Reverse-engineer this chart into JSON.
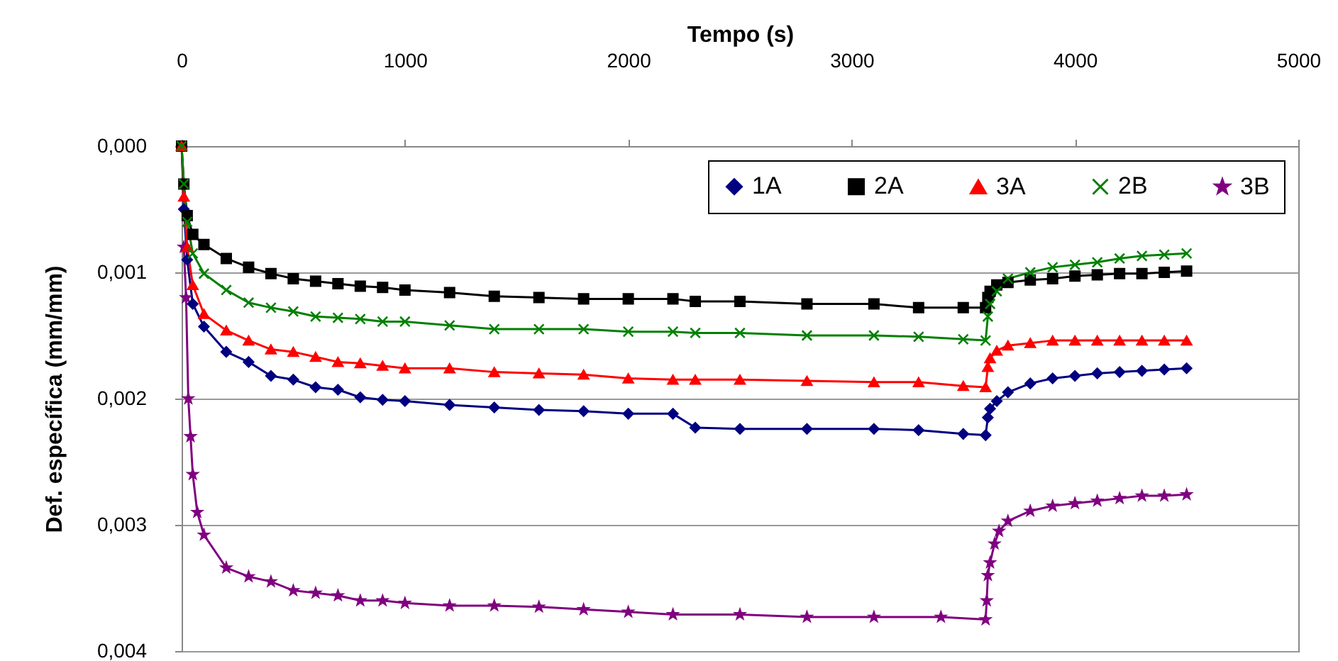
{
  "chart_data": {
    "type": "line",
    "xlabel": "Tempo (s)",
    "ylabel": "Def. específica (mm/mm)",
    "xlim": [
      0,
      5000
    ],
    "xticks": [
      0,
      1000,
      2000,
      3000,
      4000,
      5000
    ],
    "ylim": [
      0.004,
      0
    ],
    "yticks": [
      {
        "value": 0,
        "label": "0,000"
      },
      {
        "value": 0.001,
        "label": "0,001"
      },
      {
        "value": 0.002,
        "label": "0,002"
      },
      {
        "value": 0.003,
        "label": "0,003"
      },
      {
        "value": 0.004,
        "label": "0,004"
      }
    ],
    "grid": "y",
    "legend": "top right",
    "line_style": "solid",
    "series": [
      {
        "name": "1A",
        "color": "#000080",
        "marker": "diamond",
        "x": [
          0,
          10,
          25,
          50,
          100,
          200,
          300,
          400,
          500,
          600,
          700,
          800,
          900,
          1000,
          1200,
          1400,
          1600,
          1800,
          2000,
          2200,
          2300,
          2500,
          2800,
          3100,
          3300,
          3500,
          3600,
          3610,
          3620,
          3650,
          3700,
          3800,
          3900,
          4000,
          4100,
          4200,
          4300,
          4400,
          4500
        ],
        "values": [
          0,
          0.0005,
          0.0009,
          0.00125,
          0.00143,
          0.00163,
          0.00171,
          0.00182,
          0.00185,
          0.00191,
          0.00193,
          0.00199,
          0.00201,
          0.00202,
          0.00205,
          0.00207,
          0.00209,
          0.0021,
          0.00212,
          0.00212,
          0.00223,
          0.00224,
          0.00224,
          0.00224,
          0.00225,
          0.00228,
          0.00229,
          0.00215,
          0.00208,
          0.00202,
          0.00195,
          0.00188,
          0.00184,
          0.00182,
          0.0018,
          0.00179,
          0.00178,
          0.00177,
          0.00176
        ]
      },
      {
        "name": "2A",
        "color": "#000000",
        "marker": "square",
        "x": [
          0,
          10,
          25,
          50,
          100,
          200,
          300,
          400,
          500,
          600,
          700,
          800,
          900,
          1000,
          1200,
          1400,
          1600,
          1800,
          2000,
          2200,
          2300,
          2500,
          2800,
          3100,
          3300,
          3500,
          3600,
          3610,
          3620,
          3650,
          3700,
          3800,
          3900,
          4000,
          4100,
          4200,
          4300,
          4400,
          4500
        ],
        "values": [
          0,
          0.0003,
          0.00055,
          0.0007,
          0.00078,
          0.00089,
          0.00096,
          0.00101,
          0.00105,
          0.00107,
          0.00109,
          0.00111,
          0.00112,
          0.00114,
          0.00116,
          0.00119,
          0.0012,
          0.00121,
          0.00121,
          0.00121,
          0.00123,
          0.00123,
          0.00125,
          0.00125,
          0.00128,
          0.00128,
          0.00128,
          0.0012,
          0.00115,
          0.0011,
          0.00108,
          0.00106,
          0.00105,
          0.00103,
          0.00102,
          0.00101,
          0.00101,
          0.001,
          0.00099
        ]
      },
      {
        "name": "3A",
        "color": "#ff0000",
        "marker": "triangle",
        "x": [
          0,
          10,
          25,
          50,
          100,
          200,
          300,
          400,
          500,
          600,
          700,
          800,
          900,
          1000,
          1200,
          1400,
          1600,
          1800,
          2000,
          2200,
          2300,
          2500,
          2800,
          3100,
          3300,
          3500,
          3600,
          3610,
          3620,
          3650,
          3700,
          3800,
          3900,
          4000,
          4100,
          4200,
          4300,
          4400,
          4500
        ],
        "values": [
          0,
          0.0004,
          0.0008,
          0.0011,
          0.00133,
          0.00146,
          0.00154,
          0.00161,
          0.00163,
          0.00167,
          0.00171,
          0.00172,
          0.00174,
          0.00176,
          0.00176,
          0.00179,
          0.0018,
          0.00181,
          0.00184,
          0.00185,
          0.00185,
          0.00185,
          0.00186,
          0.00187,
          0.00187,
          0.0019,
          0.00191,
          0.00175,
          0.00168,
          0.00162,
          0.00158,
          0.00156,
          0.00154,
          0.00154,
          0.00154,
          0.00154,
          0.00154,
          0.00154,
          0.00154
        ]
      },
      {
        "name": "2B",
        "color": "#008000",
        "marker": "cross",
        "x": [
          0,
          10,
          25,
          50,
          100,
          200,
          300,
          400,
          500,
          600,
          700,
          800,
          900,
          1000,
          1200,
          1400,
          1600,
          1800,
          2000,
          2200,
          2300,
          2500,
          2800,
          3100,
          3300,
          3500,
          3600,
          3610,
          3620,
          3650,
          3700,
          3800,
          3900,
          4000,
          4100,
          4200,
          4300,
          4400,
          4500
        ],
        "values": [
          0,
          0.0003,
          0.0006,
          0.00085,
          0.00101,
          0.00114,
          0.00124,
          0.00128,
          0.00131,
          0.00135,
          0.00136,
          0.00137,
          0.00139,
          0.00139,
          0.00142,
          0.00145,
          0.00145,
          0.00145,
          0.00147,
          0.00147,
          0.00148,
          0.00148,
          0.0015,
          0.0015,
          0.00151,
          0.00153,
          0.00154,
          0.00135,
          0.00125,
          0.00115,
          0.00105,
          0.001,
          0.00096,
          0.00094,
          0.00092,
          0.00089,
          0.00087,
          0.00086,
          0.00085
        ]
      },
      {
        "name": "3B",
        "color": "#800080",
        "marker": "star",
        "x": [
          10,
          20,
          30,
          40,
          50,
          70,
          100,
          200,
          300,
          400,
          500,
          600,
          700,
          800,
          900,
          1000,
          1200,
          1400,
          1600,
          1800,
          2000,
          2200,
          2500,
          2800,
          3100,
          3400,
          3600,
          3605,
          3610,
          3620,
          3640,
          3660,
          3700,
          3800,
          3900,
          4000,
          4100,
          4200,
          4300,
          4400,
          4500
        ],
        "values": [
          0.0008,
          0.0012,
          0.002,
          0.0023,
          0.0026,
          0.0029,
          0.00308,
          0.00334,
          0.00341,
          0.00345,
          0.00352,
          0.00354,
          0.00356,
          0.0036,
          0.0036,
          0.00362,
          0.00364,
          0.00364,
          0.00365,
          0.00367,
          0.00369,
          0.00371,
          0.00371,
          0.00373,
          0.00373,
          0.00373,
          0.00375,
          0.0036,
          0.0034,
          0.0033,
          0.00315,
          0.00305,
          0.00297,
          0.00289,
          0.00285,
          0.00283,
          0.00281,
          0.00279,
          0.00277,
          0.00277,
          0.00276
        ]
      }
    ]
  }
}
